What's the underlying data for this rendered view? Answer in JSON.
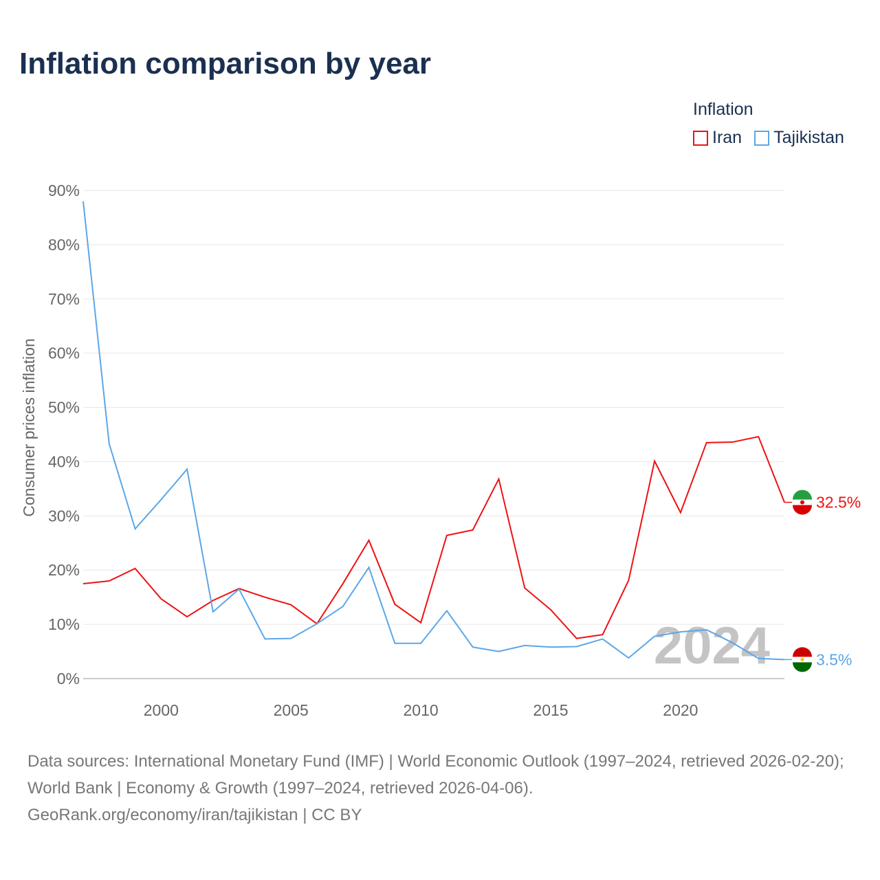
{
  "title": "Inflation comparison by year",
  "legend": {
    "title": "Inflation",
    "items": [
      {
        "label": "Iran",
        "color": "#ee1111"
      },
      {
        "label": "Tajikistan",
        "color": "#5ba6e8"
      }
    ]
  },
  "chart_data": {
    "type": "line",
    "title": "Inflation comparison by year",
    "xlabel": "",
    "ylabel": "Consumer prices inflation",
    "xlim": [
      1997,
      2024
    ],
    "ylim": [
      0,
      90
    ],
    "x_ticks": [
      {
        "value": 2000,
        "label": "2000"
      },
      {
        "value": 2005,
        "label": "2005"
      },
      {
        "value": 2010,
        "label": "2010"
      },
      {
        "value": 2015,
        "label": "2015"
      },
      {
        "value": 2020,
        "label": "2020"
      }
    ],
    "y_ticks": [
      {
        "value": 0,
        "label": "0%"
      },
      {
        "value": 10,
        "label": "10%"
      },
      {
        "value": 20,
        "label": "20%"
      },
      {
        "value": 30,
        "label": "30%"
      },
      {
        "value": 40,
        "label": "40%"
      },
      {
        "value": 50,
        "label": "50%"
      },
      {
        "value": 60,
        "label": "60%"
      },
      {
        "value": 70,
        "label": "70%"
      },
      {
        "value": 80,
        "label": "80%"
      },
      {
        "value": 90,
        "label": "90%"
      }
    ],
    "grid": true,
    "legend_position": "top-right",
    "year_watermark": "2024",
    "x": [
      1997,
      1998,
      1999,
      2000,
      2001,
      2002,
      2003,
      2004,
      2005,
      2006,
      2007,
      2008,
      2009,
      2010,
      2011,
      2012,
      2013,
      2014,
      2015,
      2016,
      2017,
      2018,
      2019,
      2020,
      2021,
      2022,
      2023,
      2024
    ],
    "series": [
      {
        "name": "Iran",
        "color": "#ee1111",
        "end_label": "32.5%",
        "values": [
          17.5,
          18.0,
          20.3,
          14.7,
          11.4,
          14.4,
          16.6,
          15.0,
          13.6,
          10.1,
          17.5,
          25.5,
          13.7,
          10.3,
          26.4,
          27.4,
          36.8,
          16.7,
          12.7,
          7.4,
          8.1,
          18.1,
          40.1,
          30.6,
          43.5,
          43.6,
          44.6,
          32.5
        ]
      },
      {
        "name": "Tajikistan",
        "color": "#5ba6e8",
        "end_label": "3.5%",
        "values": [
          88.0,
          43.3,
          27.6,
          33.0,
          38.6,
          12.3,
          16.5,
          7.3,
          7.4,
          10.1,
          13.3,
          20.5,
          6.5,
          6.5,
          12.5,
          5.8,
          5.0,
          6.1,
          5.8,
          5.9,
          7.3,
          3.8,
          7.8,
          8.6,
          9.0,
          6.6,
          3.7,
          3.5
        ]
      }
    ]
  },
  "source": {
    "line1": "Data sources: International Monetary Fund (IMF) | World Economic Outlook (1997–2024, retrieved 2026-02-20); World Bank | Economy & Growth (1997–2024, retrieved 2026-04-06).",
    "line2": "GeoRank.org/economy/iran/tajikistan | CC BY"
  }
}
